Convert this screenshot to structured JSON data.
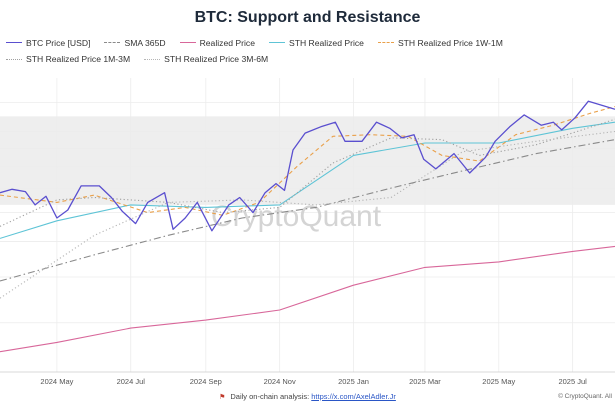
{
  "colors": {
    "btc": "#5a4fcf",
    "sma": "#8a8a8a",
    "realized": "#d8679a",
    "sth": "#5ec4d6",
    "sth1w1m": "#e9a04a",
    "sth1m3m": "#a0a0a0",
    "sth3m6m": "#b5b5b5",
    "band": "#eeeeee",
    "grid": "#ececec"
  },
  "watermark": "CryptoQuant",
  "footer": {
    "text": "Daily on-chain analysis:",
    "link": "https://x.com/AxelAdler.Jr",
    "copyright": "© CryptoQuant. All"
  },
  "chart_data": {
    "type": "line",
    "title": "BTC: Support and Resistance",
    "x_axis_ticks": [
      "2024 May",
      "2024 Jul",
      "2024 Sep",
      "2024 Nov",
      "2025 Jan",
      "2025 Mar",
      "2025 May",
      "2025 Jul"
    ],
    "x_range": [
      "2024-03-15",
      "2025-08-05"
    ],
    "y_axis": {
      "scale": "log",
      "tick_labels_visible": false
    },
    "grid": true,
    "legend_position": "top",
    "series": [
      {
        "name": "BTC Price [USD]",
        "color_key": "btc",
        "style": "solid",
        "values": [
          [
            "2024-03-15",
            68000
          ],
          [
            "2024-03-25",
            69500
          ],
          [
            "2024-04-05",
            68500
          ],
          [
            "2024-04-13",
            63000
          ],
          [
            "2024-04-22",
            66500
          ],
          [
            "2024-05-01",
            58000
          ],
          [
            "2024-05-10",
            61000
          ],
          [
            "2024-05-21",
            71000
          ],
          [
            "2024-06-05",
            71000
          ],
          [
            "2024-06-15",
            66000
          ],
          [
            "2024-06-24",
            60500
          ],
          [
            "2024-07-05",
            56000
          ],
          [
            "2024-07-15",
            64000
          ],
          [
            "2024-07-29",
            68000
          ],
          [
            "2024-08-05",
            54000
          ],
          [
            "2024-08-15",
            58000
          ],
          [
            "2024-08-25",
            64000
          ],
          [
            "2024-09-06",
            53500
          ],
          [
            "2024-09-20",
            63000
          ],
          [
            "2024-09-29",
            66000
          ],
          [
            "2024-10-10",
            60000
          ],
          [
            "2024-10-20",
            68000
          ],
          [
            "2024-10-29",
            72000
          ],
          [
            "2024-11-05",
            69000
          ],
          [
            "2024-11-12",
            89000
          ],
          [
            "2024-11-22",
            99000
          ],
          [
            "2024-12-05",
            103000
          ],
          [
            "2024-12-17",
            106000
          ],
          [
            "2024-12-25",
            94000
          ],
          [
            "2025-01-08",
            94000
          ],
          [
            "2025-01-20",
            106000
          ],
          [
            "2025-01-31",
            102000
          ],
          [
            "2025-02-10",
            96000
          ],
          [
            "2025-02-20",
            98000
          ],
          [
            "2025-02-28",
            84000
          ],
          [
            "2025-03-10",
            79000
          ],
          [
            "2025-03-25",
            87000
          ],
          [
            "2025-04-07",
            77000
          ],
          [
            "2025-04-20",
            85000
          ],
          [
            "2025-04-28",
            94000
          ],
          [
            "2025-05-10",
            103000
          ],
          [
            "2025-05-22",
            111000
          ],
          [
            "2025-06-05",
            104000
          ],
          [
            "2025-06-15",
            106000
          ],
          [
            "2025-06-22",
            101000
          ],
          [
            "2025-07-03",
            109000
          ],
          [
            "2025-07-14",
            121000
          ],
          [
            "2025-07-25",
            118000
          ],
          [
            "2025-08-05",
            115000
          ]
        ]
      },
      {
        "name": "SMA 365D",
        "color_key": "sma",
        "style": "dashdot",
        "values": [
          [
            "2024-03-15",
            39000
          ],
          [
            "2024-06-01",
            46000
          ],
          [
            "2024-08-01",
            52000
          ],
          [
            "2024-10-01",
            58000
          ],
          [
            "2024-12-01",
            62000
          ],
          [
            "2025-02-01",
            70000
          ],
          [
            "2025-04-01",
            78000
          ],
          [
            "2025-06-01",
            87000
          ],
          [
            "2025-08-05",
            95000
          ]
        ]
      },
      {
        "name": "Realized Price",
        "color_key": "realized",
        "style": "solid",
        "values": [
          [
            "2024-03-15",
            25000
          ],
          [
            "2024-05-01",
            26500
          ],
          [
            "2024-07-01",
            29000
          ],
          [
            "2024-09-01",
            30500
          ],
          [
            "2024-11-01",
            32500
          ],
          [
            "2025-01-01",
            38000
          ],
          [
            "2025-03-01",
            42500
          ],
          [
            "2025-05-01",
            44000
          ],
          [
            "2025-07-01",
            47000
          ],
          [
            "2025-08-05",
            48500
          ]
        ]
      },
      {
        "name": "STH Realized Price",
        "color_key": "sth",
        "style": "solid",
        "values": [
          [
            "2024-03-15",
            51000
          ],
          [
            "2024-05-01",
            57000
          ],
          [
            "2024-07-01",
            63000
          ],
          [
            "2024-09-01",
            62000
          ],
          [
            "2024-11-01",
            63000
          ],
          [
            "2025-01-01",
            86000
          ],
          [
            "2025-03-01",
            93000
          ],
          [
            "2025-05-01",
            93000
          ],
          [
            "2025-07-01",
            102000
          ],
          [
            "2025-08-05",
            106000
          ]
        ]
      },
      {
        "name": "STH Realized Price 1W-1M",
        "color_key": "sth1w1m",
        "style": "dashed",
        "values": [
          [
            "2024-03-15",
            67000
          ],
          [
            "2024-05-01",
            64000
          ],
          [
            "2024-06-01",
            67000
          ],
          [
            "2024-07-15",
            60000
          ],
          [
            "2024-08-15",
            62000
          ],
          [
            "2024-09-15",
            59000
          ],
          [
            "2024-10-15",
            64000
          ],
          [
            "2024-11-15",
            80000
          ],
          [
            "2024-12-15",
            97000
          ],
          [
            "2025-01-15",
            98000
          ],
          [
            "2025-02-15",
            97000
          ],
          [
            "2025-03-15",
            86000
          ],
          [
            "2025-04-15",
            83000
          ],
          [
            "2025-05-15",
            98000
          ],
          [
            "2025-06-15",
            104000
          ],
          [
            "2025-07-15",
            112000
          ],
          [
            "2025-08-05",
            117000
          ]
        ]
      },
      {
        "name": "STH Realized Price 1M-3M",
        "color_key": "sth1m3m",
        "style": "dotted",
        "values": [
          [
            "2024-03-15",
            55000
          ],
          [
            "2024-05-01",
            65000
          ],
          [
            "2024-06-01",
            66000
          ],
          [
            "2024-08-01",
            64000
          ],
          [
            "2024-09-15",
            60000
          ],
          [
            "2024-11-01",
            62000
          ],
          [
            "2024-12-15",
            82000
          ],
          [
            "2025-02-01",
            96000
          ],
          [
            "2025-03-15",
            95000
          ],
          [
            "2025-04-15",
            86000
          ],
          [
            "2025-06-01",
            92000
          ],
          [
            "2025-08-05",
            108000
          ]
        ]
      },
      {
        "name": "STH Realized Price 3M-6M",
        "color_key": "sth3m6m",
        "style": "dotted",
        "values": [
          [
            "2024-03-15",
            35000
          ],
          [
            "2024-06-01",
            52000
          ],
          [
            "2024-08-01",
            64000
          ],
          [
            "2024-10-01",
            65000
          ],
          [
            "2024-12-01",
            63000
          ],
          [
            "2025-02-01",
            66000
          ],
          [
            "2025-04-01",
            88000
          ],
          [
            "2025-06-01",
            94000
          ],
          [
            "2025-08-05",
            100000
          ]
        ]
      }
    ]
  }
}
